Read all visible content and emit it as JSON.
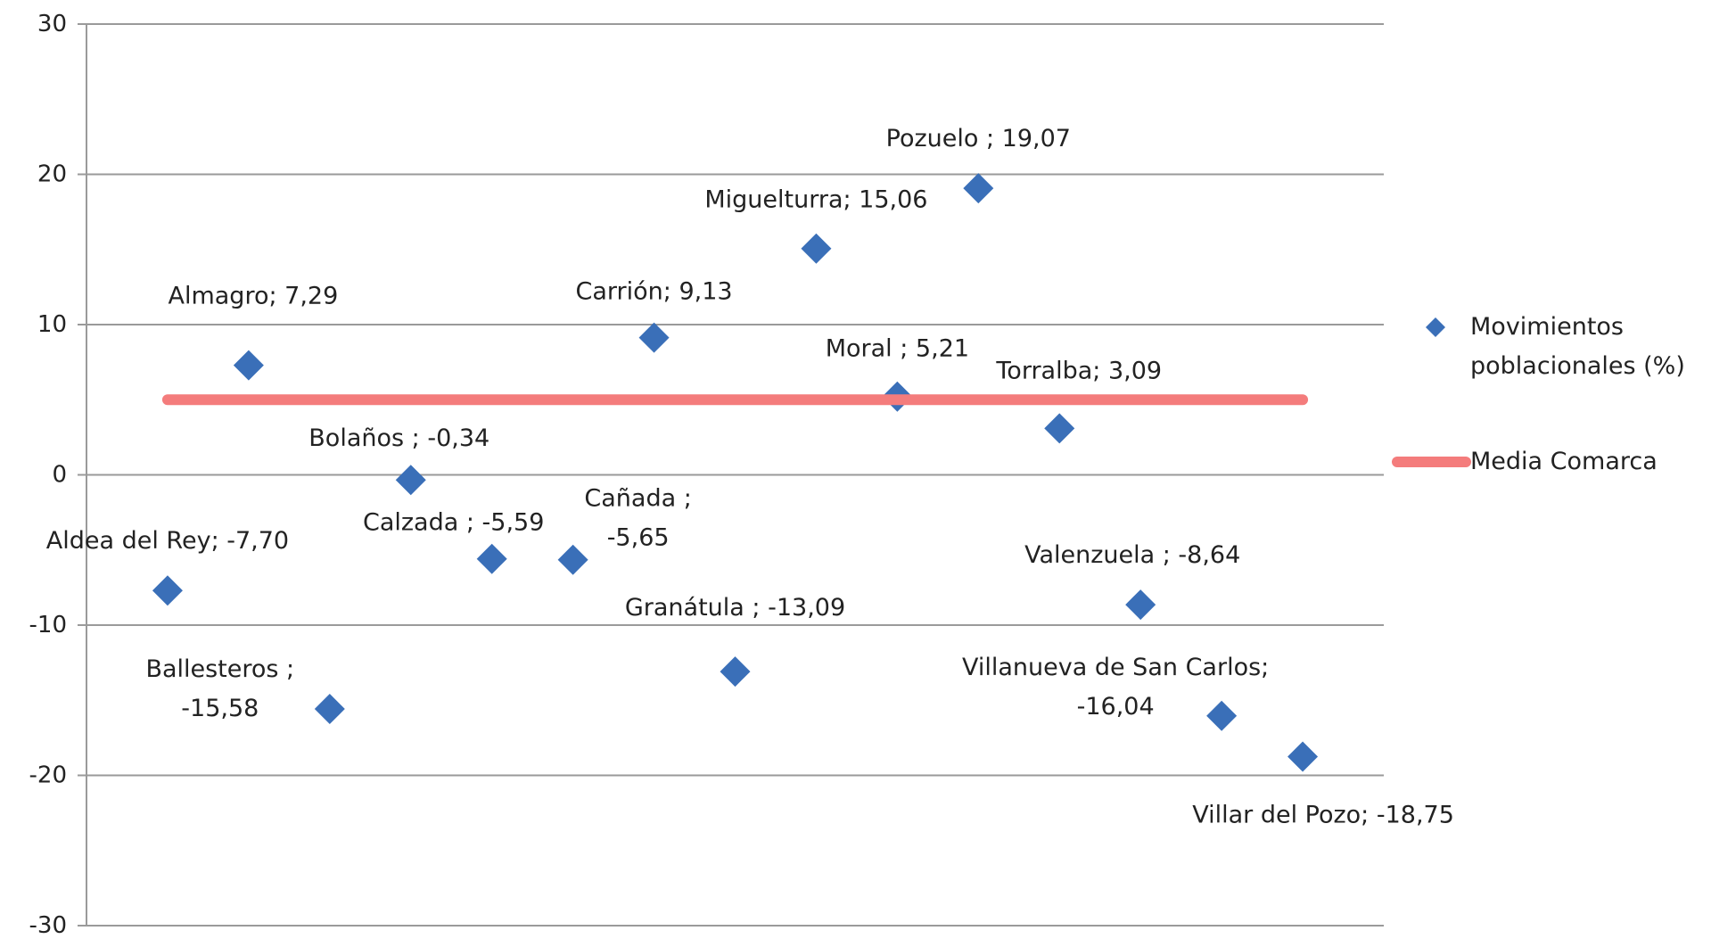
{
  "chart_data": {
    "type": "scatter",
    "xlim": [
      0,
      16
    ],
    "ylim": [
      -30,
      30
    ],
    "yticks": [
      -30,
      -20,
      -10,
      0,
      10,
      20,
      30
    ],
    "grid": true,
    "legend": "right",
    "series": [
      {
        "name": "Movimientos\npoblacionales (%)",
        "color": "#3a6fb8",
        "marker": "diamond",
        "x": [
          1,
          2,
          3,
          4,
          5,
          6,
          7,
          8,
          9,
          10,
          11,
          12,
          13,
          14,
          15
        ],
        "values": [
          -7.7,
          7.29,
          -15.58,
          -0.34,
          -5.59,
          -5.65,
          9.13,
          -13.09,
          15.06,
          5.21,
          19.07,
          3.09,
          -8.64,
          -16.04,
          -18.75
        ],
        "value_labels": [
          "Aldea del Rey; -7,70",
          "Almagro; 7,29",
          "Ballesteros ;\n-15,58",
          "Bolaños ; -0,34",
          "Calzada ; -5,59",
          "Cañada ;\n-5,65",
          "Carrión; 9,13",
          "Granátula ; -13,09",
          "Miguelturra; 15,06",
          "Moral ; 5,21",
          "Pozuelo ; 19,07",
          "Torralba; 3,09",
          "Valenzuela ; -8,64",
          "Villanueva de San Carlos;\n-16,04",
          "Villar del Pozo; -18,75"
        ]
      },
      {
        "name": "Media Comarca",
        "color": "#f47c7c",
        "marker": "line",
        "x": [
          1,
          15
        ],
        "values": [
          5,
          5
        ]
      }
    ]
  }
}
